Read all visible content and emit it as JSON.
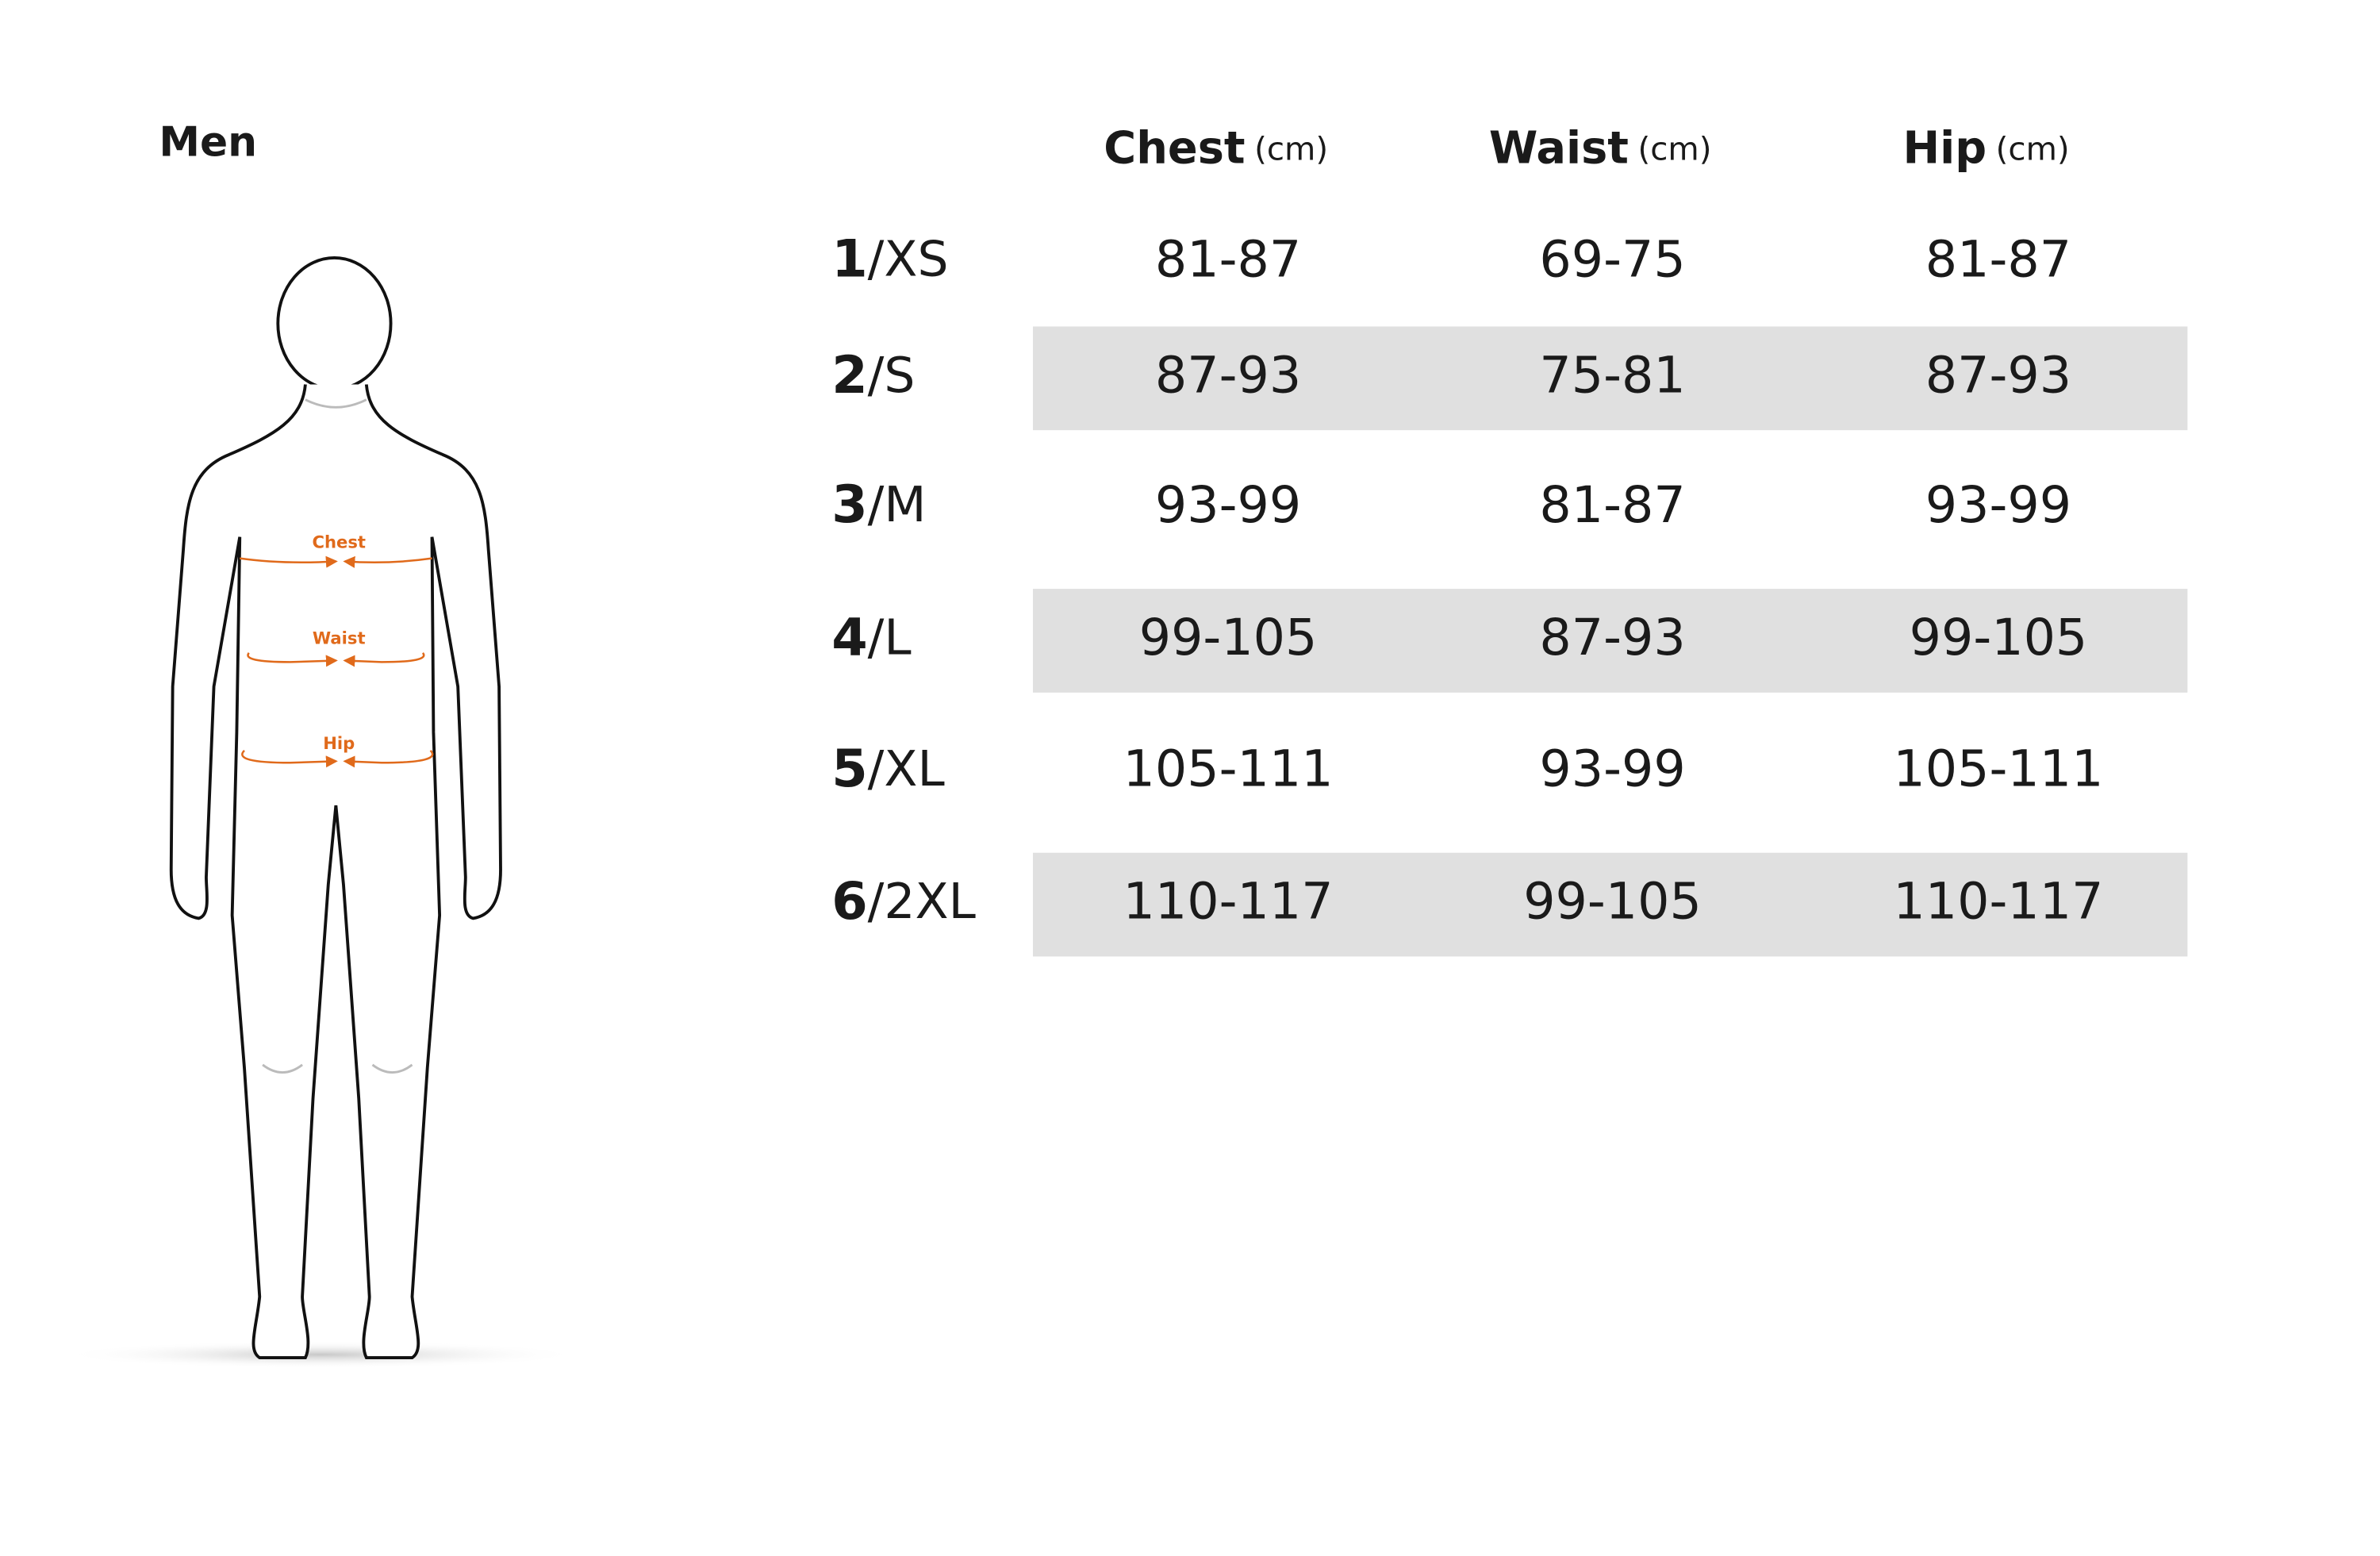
{
  "header": {
    "title": "Men"
  },
  "figure": {
    "labels": [
      "Chest",
      "Waist",
      "Hip"
    ]
  },
  "table": {
    "columns": [
      {
        "name": "Chest",
        "unit": "(cm)"
      },
      {
        "name": "Waist",
        "unit": "(cm)"
      },
      {
        "name": "Hip",
        "unit": "(cm)"
      }
    ],
    "rows": [
      {
        "num": "1",
        "size": "/XS",
        "cells": [
          "81-87",
          "69-75",
          "81-87"
        ]
      },
      {
        "num": "2",
        "size": "/S",
        "cells": [
          "87-93",
          "75-81",
          "87-93"
        ]
      },
      {
        "num": "3",
        "size": "/M",
        "cells": [
          "93-99",
          "81-87",
          "93-99"
        ]
      },
      {
        "num": "4",
        "size": "/L",
        "cells": [
          "99-105",
          "87-93",
          "99-105"
        ]
      },
      {
        "num": "5",
        "size": "/XL",
        "cells": [
          "105-111",
          "93-99",
          "105-111"
        ]
      },
      {
        "num": "6",
        "size": "/2XL",
        "cells": [
          "110-117",
          "99-105",
          "110-117"
        ]
      }
    ]
  }
}
